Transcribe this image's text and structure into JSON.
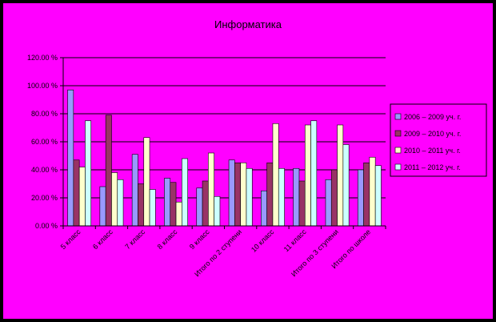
{
  "chart_data": {
    "type": "bar",
    "title": "Информатика",
    "categories": [
      "5 класс",
      "6 класс",
      "7 класс",
      "8 класс",
      "9 класс",
      "Итого по 2 ступени",
      "10 класс",
      "11 класс",
      "Итого по 3 ступени",
      "Итого по школе"
    ],
    "series": [
      {
        "name": "2006 – 2009 уч. г.",
        "values": [
          97,
          28,
          51,
          34,
          27,
          47,
          25,
          41,
          33,
          40
        ]
      },
      {
        "name": "2009 – 2010 уч. г.",
        "values": [
          47,
          79,
          30,
          31,
          32,
          45,
          45,
          32,
          40,
          45
        ]
      },
      {
        "name": "2010 – 2011 уч. г.",
        "values": [
          42,
          38,
          63,
          17,
          52,
          45,
          73,
          72,
          72,
          49
        ]
      },
      {
        "name": "2011 – 2012 уч. г.",
        "values": [
          75,
          33,
          26,
          48,
          21,
          41,
          41,
          75,
          58,
          43
        ]
      }
    ],
    "y_ticks": [
      "0.00 %",
      "20.00 %",
      "40.00 %",
      "60.00 %",
      "80.00 %",
      "100.00 %",
      "120.00 %"
    ],
    "ylim": [
      0,
      120
    ],
    "grid": true,
    "legend_position": "right",
    "colors": [
      "#9999FF",
      "#993366",
      "#FFFFCC",
      "#CCFFFF"
    ],
    "plot_background": "#FF00FF"
  }
}
